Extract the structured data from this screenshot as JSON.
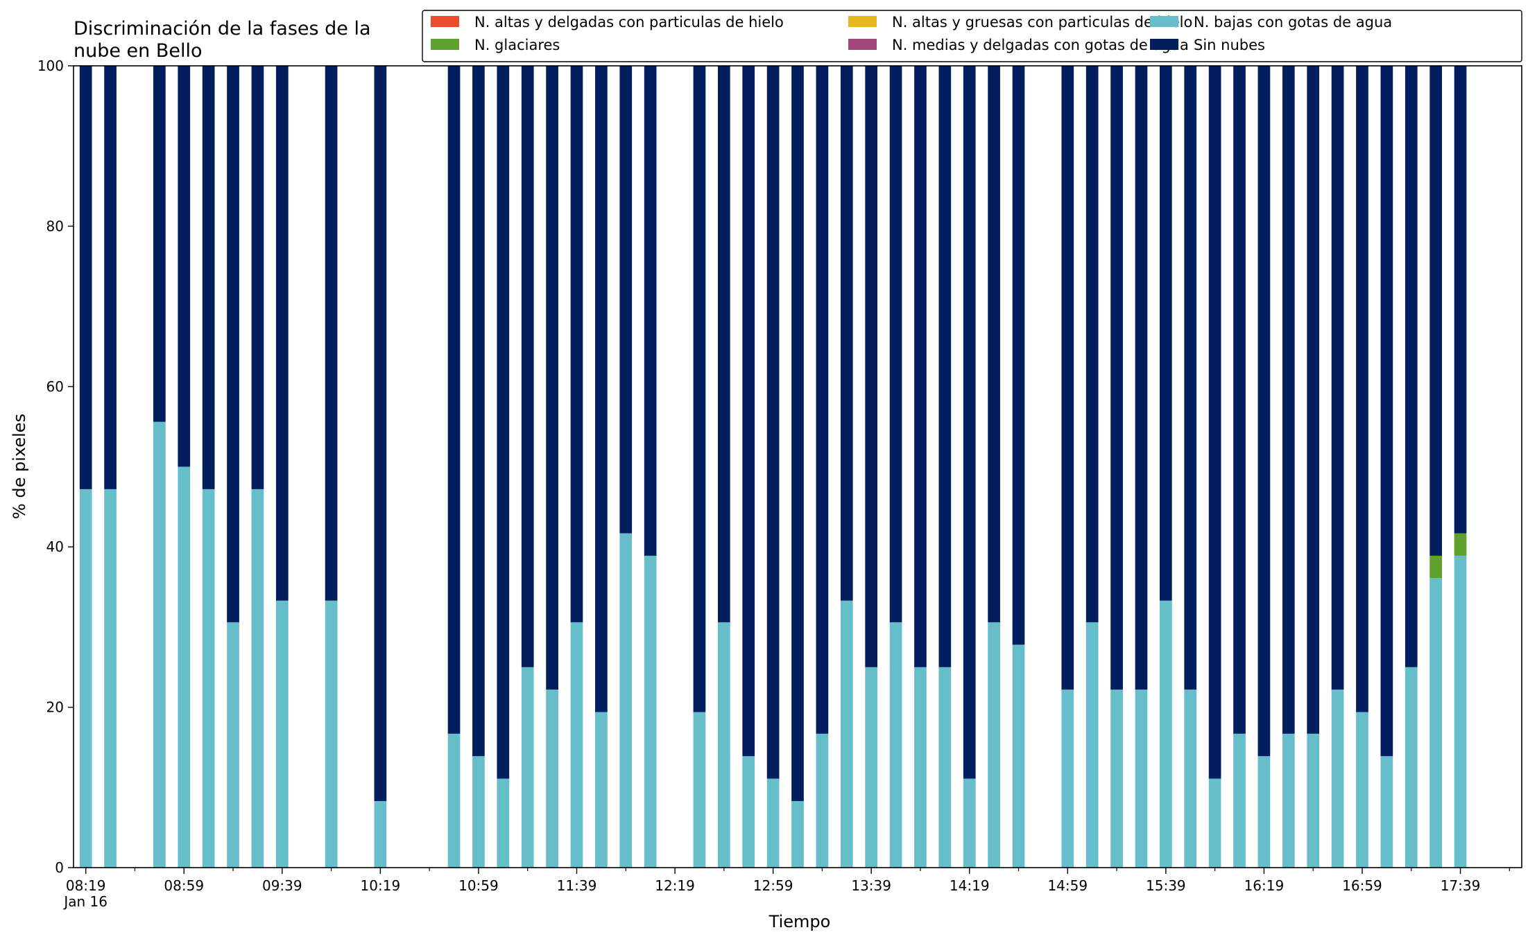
{
  "chart_data": {
    "type": "bar",
    "stacked": true,
    "title_lines": [
      "Discriminación de la fases de la",
      "nube en Bello"
    ],
    "xlabel": "Tiempo",
    "ylabel": "% de pixeles",
    "xlim": [
      "08:14",
      "18:04"
    ],
    "ylim": [
      0,
      100
    ],
    "yticks": [
      0,
      20,
      40,
      60,
      80,
      100
    ],
    "xticks": [
      "08:19",
      "08:59",
      "09:39",
      "10:19",
      "10:59",
      "11:39",
      "12:19",
      "12:59",
      "13:39",
      "14:19",
      "14:59",
      "15:39",
      "16:19",
      "16:59",
      "17:39"
    ],
    "xtick_sublabel": "Jan 16",
    "grid": false,
    "legend_position": "top-right",
    "legend_columns": 3,
    "bar_interval_minutes": 10,
    "bar_width_minutes": 5,
    "times": [
      "08:19",
      "08:29",
      "08:49",
      "08:59",
      "09:09",
      "09:19",
      "09:29",
      "09:39",
      "09:59",
      "10:19",
      "10:49",
      "10:59",
      "11:09",
      "11:19",
      "11:29",
      "11:39",
      "11:49",
      "11:59",
      "12:09",
      "12:29",
      "12:39",
      "12:49",
      "12:59",
      "13:09",
      "13:19",
      "13:29",
      "13:39",
      "13:49",
      "13:59",
      "14:09",
      "14:19",
      "14:29",
      "14:39",
      "14:59",
      "15:09",
      "15:19",
      "15:29",
      "15:39",
      "15:49",
      "15:59",
      "16:09",
      "16:19",
      "16:29",
      "16:39",
      "16:49",
      "16:59",
      "17:09",
      "17:19",
      "17:29",
      "17:39"
    ],
    "series": [
      {
        "name": "N. altas y delgadas con particulas de hielo",
        "color": "#EE4A2C",
        "values": [
          0,
          0,
          0,
          0,
          0,
          0,
          0,
          0,
          0,
          0,
          0,
          0,
          0,
          0,
          0,
          0,
          0,
          0,
          0,
          0,
          0,
          0,
          0,
          0,
          0,
          0,
          0,
          0,
          0,
          0,
          0,
          0,
          0,
          0,
          0,
          0,
          0,
          0,
          0,
          0,
          0,
          0,
          0,
          0,
          0,
          0,
          0,
          0,
          0,
          0
        ]
      },
      {
        "name": "N. altas y gruesas con particulas de hielo",
        "color": "#E6B81C",
        "values": [
          0,
          0,
          0,
          0,
          0,
          0,
          0,
          0,
          0,
          0,
          0,
          0,
          0,
          0,
          0,
          0,
          0,
          0,
          0,
          0,
          0,
          0,
          0,
          0,
          0,
          0,
          0,
          0,
          0,
          0,
          0,
          0,
          0,
          0,
          0,
          0,
          0,
          0,
          0,
          0,
          0,
          0,
          0,
          0,
          0,
          0,
          0,
          0,
          0,
          0
        ]
      },
      {
        "name": "N. bajas con gotas de agua",
        "color": "#67BECB",
        "values": [
          47.2,
          47.2,
          55.6,
          50.0,
          47.2,
          30.6,
          47.2,
          33.3,
          33.3,
          8.3,
          16.7,
          13.9,
          11.1,
          25.0,
          22.2,
          30.6,
          19.4,
          41.7,
          38.9,
          19.4,
          30.6,
          13.9,
          11.1,
          8.3,
          16.7,
          33.3,
          25.0,
          30.6,
          25.0,
          25.0,
          11.1,
          30.6,
          27.8,
          22.2,
          30.6,
          22.2,
          22.2,
          33.3,
          22.2,
          11.1,
          16.7,
          13.9,
          16.7,
          16.7,
          22.2,
          19.4,
          13.9,
          25.0,
          36.1,
          38.9
        ]
      },
      {
        "name": "N. glaciares",
        "color": "#60A02C",
        "values": [
          0,
          0,
          0,
          0,
          0,
          0,
          0,
          0,
          0,
          0,
          0,
          0,
          0,
          0,
          0,
          0,
          0,
          0,
          0,
          0,
          0,
          0,
          0,
          0,
          0,
          0,
          0,
          0,
          0,
          0,
          0,
          0,
          0,
          0,
          0,
          0,
          0,
          0,
          0,
          0,
          0,
          0,
          0,
          0,
          0,
          0,
          0,
          0,
          2.8,
          2.8
        ]
      },
      {
        "name": "N. medias y delgadas con gotas de agua",
        "color": "#A3467A",
        "values": [
          0,
          0,
          0,
          0,
          0,
          0,
          0,
          0,
          0,
          0,
          0,
          0,
          0,
          0,
          0,
          0,
          0,
          0,
          0,
          0,
          0,
          0,
          0,
          0,
          0,
          0,
          0,
          0,
          0,
          0,
          0,
          0,
          0,
          0,
          0,
          0,
          0,
          0,
          0,
          0,
          0,
          0,
          0,
          0,
          0,
          0,
          0,
          0,
          0,
          0
        ]
      },
      {
        "name": "Sin nubes",
        "color": "#031E5E",
        "values": [
          52.8,
          52.8,
          44.4,
          50.0,
          52.8,
          69.4,
          52.8,
          66.7,
          66.7,
          91.7,
          83.3,
          86.1,
          88.9,
          75.0,
          77.8,
          69.4,
          80.6,
          58.3,
          61.1,
          80.6,
          69.4,
          86.1,
          88.9,
          91.7,
          83.3,
          66.7,
          75.0,
          69.4,
          75.0,
          75.0,
          88.9,
          69.4,
          72.2,
          77.8,
          69.4,
          77.8,
          77.8,
          66.7,
          77.8,
          88.9,
          83.3,
          86.1,
          83.3,
          83.3,
          77.8,
          80.6,
          86.1,
          75.0,
          61.1,
          58.3
        ]
      }
    ]
  }
}
